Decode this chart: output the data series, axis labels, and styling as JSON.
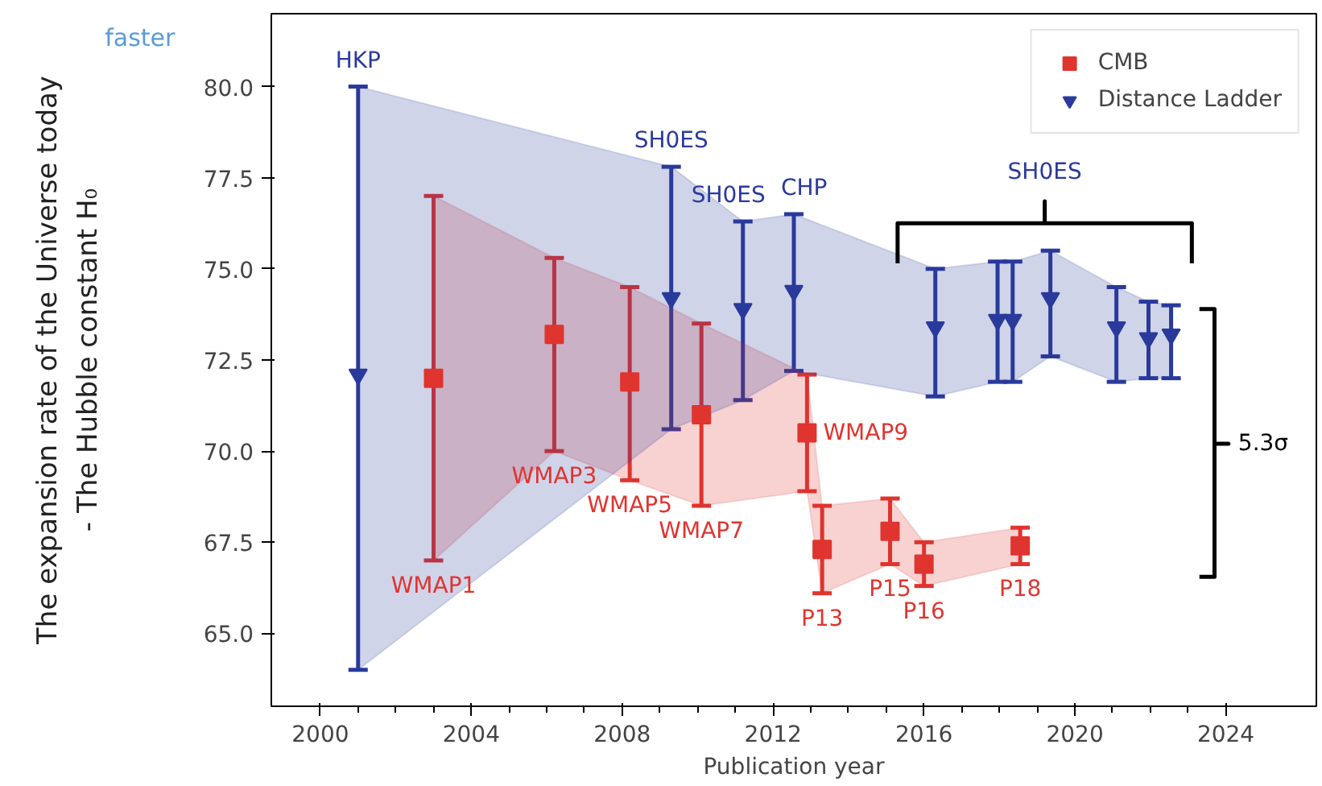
{
  "chart_data": {
    "type": "scatter",
    "xlabel": "Publication year",
    "xlim": [
      1998.7,
      2026.4
    ],
    "ylim": [
      63.0,
      82.0
    ],
    "xticks": [
      2000,
      {
        "value": 2001,
        "label": null
      },
      {
        "value": 2002,
        "label": null
      },
      {
        "value": 2003,
        "label": null
      },
      2004,
      {
        "value": 2005,
        "label": null
      },
      {
        "value": 2006,
        "label": null
      },
      {
        "value": 2007,
        "label": null
      },
      2008,
      {
        "value": 2009,
        "label": null
      },
      {
        "value": 2010,
        "label": null
      },
      {
        "value": 2011,
        "label": null
      },
      2012,
      {
        "value": 2013,
        "label": null
      },
      {
        "value": 2014,
        "label": null
      },
      {
        "value": 2015,
        "label": null
      },
      2016,
      {
        "value": 2017,
        "label": null
      },
      {
        "value": 2018,
        "label": null
      },
      {
        "value": 2019,
        "label": null
      },
      2020,
      {
        "value": 2021,
        "label": null
      },
      {
        "value": 2022,
        "label": null
      },
      {
        "value": 2023,
        "label": null
      },
      2024
    ],
    "yticks": [
      {
        "value": 65,
        "label": "65.0"
      },
      67.5,
      {
        "value": 70,
        "label": "70.0"
      },
      72.5,
      {
        "value": 75,
        "label": "75.0"
      },
      77.5,
      {
        "value": 80,
        "label": "80.0"
      }
    ],
    "grid": false,
    "legend": "top right",
    "series": [
      {
        "name": "CMB",
        "color": "#e0342f",
        "marker": "square",
        "x": [
          2003.0,
          2006.2,
          2008.2,
          2010.1,
          2012.9,
          2013.3,
          2015.1,
          2016.0,
          2018.55
        ],
        "values": [
          72.0,
          73.2,
          71.9,
          71.0,
          70.5,
          67.3,
          67.8,
          66.9,
          67.4
        ],
        "errors": [
          [
            67.0,
            77.0
          ],
          [
            70.0,
            75.3
          ],
          [
            69.2,
            74.5
          ],
          [
            68.5,
            73.5
          ],
          [
            68.9,
            72.1
          ],
          [
            66.1,
            68.5
          ],
          [
            66.9,
            68.7
          ],
          [
            66.3,
            67.5
          ],
          [
            66.9,
            67.9
          ]
        ],
        "lower": [
          67.0,
          70.0,
          69.2,
          68.5,
          68.9,
          66.1,
          66.9,
          66.3,
          66.9
        ],
        "upper": [
          77.0,
          75.3,
          74.5,
          73.5,
          72.1,
          68.5,
          68.7,
          67.5,
          67.9
        ]
      },
      {
        "name": "Distance Ladder",
        "color": "#2a3a9c",
        "marker": "triangle",
        "x": [
          2001.0,
          2009.3,
          2011.2,
          2012.55,
          2016.3,
          2017.95,
          2018.35,
          2019.35,
          2021.1,
          2021.95,
          2022.55
        ],
        "values": [
          72.1,
          74.2,
          73.9,
          74.4,
          73.4,
          73.6,
          73.6,
          74.2,
          73.4,
          73.1,
          73.2
        ],
        "errors": [
          [
            64.0,
            80.0
          ],
          [
            70.6,
            77.8
          ],
          [
            71.4,
            76.3
          ],
          [
            72.2,
            76.5
          ],
          [
            71.5,
            75.0
          ],
          [
            71.9,
            75.2
          ],
          [
            71.9,
            75.2
          ],
          [
            72.6,
            75.5
          ],
          [
            71.9,
            74.5
          ],
          [
            72.0,
            74.1
          ],
          [
            72.0,
            74.0
          ]
        ],
        "lower": [
          64.0,
          70.6,
          71.4,
          72.2,
          71.5,
          71.9,
          71.9,
          72.6,
          71.9,
          72.0,
          72.0
        ],
        "upper": [
          80.0,
          77.8,
          76.3,
          76.5,
          75.0,
          75.2,
          75.2,
          75.5,
          74.5,
          74.1,
          74.0
        ]
      },
      {
        "type": "line",
        "color": "#000000",
        "x": [
          2015.3,
          2015.3,
          2019.2,
          2019.2,
          2019.2,
          2023.1,
          2023.1
        ],
        "values": [
          75.15,
          76.25,
          76.25,
          76.85,
          76.25,
          76.25,
          75.15
        ]
      },
      {
        "type": "line",
        "color": "#000000",
        "x": [
          2023.3,
          2023.7,
          2023.7,
          2024.07,
          2023.7,
          2023.7,
          2023.3
        ],
        "values": [
          73.9,
          73.9,
          70.2,
          70.2,
          70.2,
          66.55,
          66.55
        ]
      }
    ],
    "annotations": [
      "faster",
      "The expansion rate of the Universe today\n- The Hubble constant H₀",
      "SH0ES",
      "5.3σ",
      {
        "text": "HKP",
        "x": 2001.0,
        "y": 80.0
      },
      {
        "text": "SH0ES",
        "x": 2009.3,
        "y": 77.8
      },
      {
        "text": "SH0ES",
        "x": 2011.2,
        "y": 76.3
      },
      {
        "text": "CHP",
        "x": 2012.55,
        "y": 76.5
      },
      {
        "text": "WMAP1",
        "x": 2003.0,
        "y": 67.0
      },
      {
        "text": "WMAP3",
        "x": 2006.2,
        "y": 70.0
      },
      {
        "text": "WMAP5",
        "x": 2008.2,
        "y": 69.2
      },
      {
        "text": "WMAP7",
        "x": 2010.1,
        "y": 68.5
      },
      {
        "text": "WMAP9",
        "x": 2012.9,
        "y": 70.5
      },
      {
        "text": "P13",
        "x": 2013.3,
        "y": 66.1
      },
      {
        "text": "P15",
        "x": 2015.1,
        "y": 66.9
      },
      {
        "text": "P16",
        "x": 2016.0,
        "y": 66.3
      },
      {
        "text": "P18",
        "x": 2018.55,
        "y": 66.9
      }
    ]
  }
}
